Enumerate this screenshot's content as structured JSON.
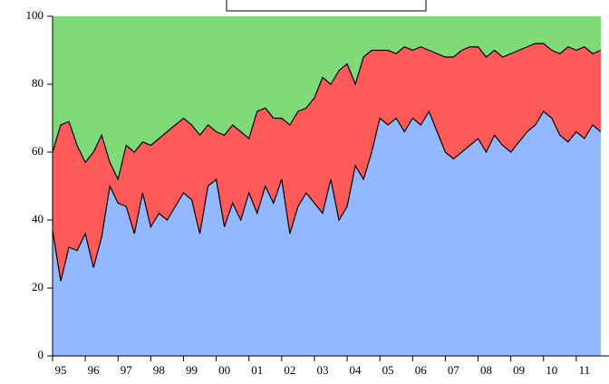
{
  "chart_data": {
    "type": "stacked-area",
    "x": [
      1995,
      1995.25,
      1995.5,
      1995.75,
      1996,
      1996.25,
      1996.5,
      1996.75,
      1997,
      1997.25,
      1997.5,
      1997.75,
      1998,
      1998.25,
      1998.5,
      1998.75,
      1999,
      1999.25,
      1999.5,
      1999.75,
      2000,
      2000.25,
      2000.5,
      2000.75,
      2001,
      2001.25,
      2001.5,
      2001.75,
      2002,
      2002.25,
      2002.5,
      2002.75,
      2003,
      2003.25,
      2003.5,
      2003.75,
      2004,
      2004.25,
      2004.5,
      2004.75,
      2005,
      2005.25,
      2005.5,
      2005.75,
      2006,
      2006.25,
      2006.5,
      2006.75,
      2007,
      2007.25,
      2007.5,
      2007.75,
      2008,
      2008.25,
      2008.5,
      2008.75,
      2009,
      2009.25,
      2009.5,
      2009.75,
      2010,
      2010.25,
      2010.5,
      2010.75,
      2011,
      2011.25,
      2011.5,
      2011.75
    ],
    "series": [
      {
        "color": "#94b8ff",
        "values": [
          37,
          22,
          32,
          31,
          36,
          26,
          35,
          50,
          45,
          44,
          36,
          48,
          38,
          42,
          40,
          44,
          48,
          46,
          36,
          50,
          52,
          38,
          45,
          40,
          48,
          42,
          50,
          45,
          52,
          36,
          44,
          48,
          45,
          42,
          52,
          40,
          44,
          56,
          52,
          60,
          70,
          68,
          70,
          66,
          70,
          68,
          72,
          66,
          60,
          58,
          60,
          62,
          64,
          60,
          65,
          62,
          60,
          63,
          66,
          68,
          72,
          70,
          65,
          63,
          66,
          64,
          68,
          66
        ]
      },
      {
        "color": "#ff5a5a",
        "values": [
          23,
          46,
          37,
          31,
          21,
          34,
          30,
          7,
          7,
          18,
          24,
          15,
          24,
          22,
          26,
          24,
          22,
          22,
          29,
          18,
          14,
          27,
          23,
          26,
          16,
          30,
          23,
          25,
          18,
          32,
          28,
          25,
          31,
          40,
          28,
          44,
          42,
          24,
          36,
          30,
          20,
          22,
          19,
          25,
          20,
          23,
          18,
          23,
          28,
          30,
          30,
          29,
          27,
          28,
          25,
          26,
          29,
          27,
          25,
          24,
          20,
          20,
          24,
          28,
          24,
          27,
          21,
          24
        ]
      },
      {
        "color": "#7fdb78",
        "values": [
          40,
          32,
          31,
          38,
          43,
          40,
          35,
          43,
          48,
          38,
          40,
          37,
          38,
          36,
          34,
          32,
          30,
          32,
          35,
          32,
          34,
          35,
          32,
          34,
          36,
          28,
          27,
          30,
          30,
          32,
          28,
          27,
          24,
          18,
          20,
          16,
          14,
          20,
          12,
          10,
          10,
          10,
          11,
          9,
          10,
          9,
          10,
          11,
          12,
          12,
          10,
          9,
          9,
          12,
          10,
          12,
          11,
          10,
          9,
          8,
          8,
          10,
          11,
          9,
          10,
          9,
          11,
          10
        ]
      }
    ],
    "xlim": [
      1995,
      2012
    ],
    "xticks": [
      {
        "value": 1995,
        "label": "95"
      },
      {
        "value": 1996,
        "label": "96"
      },
      {
        "value": 1997,
        "label": "97"
      },
      {
        "value": 1998,
        "label": "98"
      },
      {
        "value": 1999,
        "label": "99"
      },
      {
        "value": 2000,
        "label": "00"
      },
      {
        "value": 2001,
        "label": "01"
      },
      {
        "value": 2002,
        "label": "02"
      },
      {
        "value": 2003,
        "label": "03"
      },
      {
        "value": 2004,
        "label": "04"
      },
      {
        "value": 2005,
        "label": "05"
      },
      {
        "value": 2006,
        "label": "06"
      },
      {
        "value": 2007,
        "label": "07"
      },
      {
        "value": 2008,
        "label": "08"
      },
      {
        "value": 2009,
        "label": "09"
      },
      {
        "value": 2010,
        "label": "10"
      },
      {
        "value": 2011,
        "label": "11"
      }
    ],
    "ylim": [
      0,
      100
    ],
    "yticks": [
      0,
      20,
      40,
      60,
      80,
      100
    ]
  }
}
